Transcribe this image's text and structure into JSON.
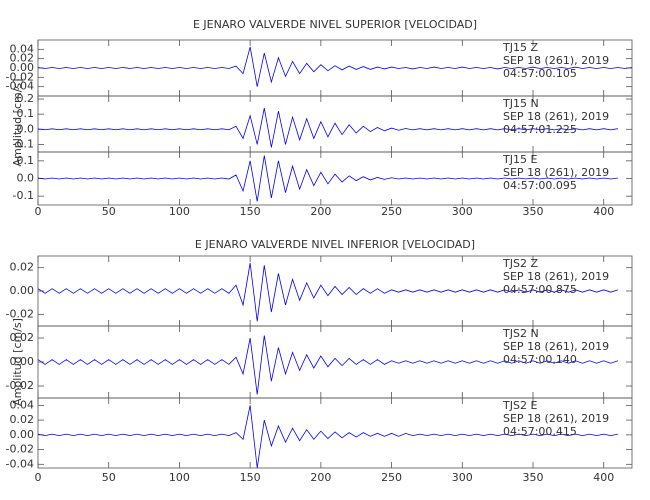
{
  "chart_data": [
    {
      "type": "line",
      "title": "E JENARO VALVERDE NIVEL SUPERIOR [VELOCIDAD]",
      "y_label": "Amplitud [cm/s]",
      "color": "#0000ff",
      "xlim": [
        0,
        420
      ],
      "xticks": [
        0,
        50,
        100,
        150,
        200,
        250,
        300,
        350,
        400
      ],
      "x": [
        0,
        5,
        10,
        15,
        20,
        25,
        30,
        35,
        40,
        45,
        50,
        55,
        60,
        65,
        70,
        75,
        80,
        85,
        90,
        95,
        100,
        105,
        110,
        115,
        120,
        125,
        130,
        135,
        140,
        145,
        150,
        155,
        160,
        165,
        170,
        175,
        180,
        185,
        190,
        195,
        200,
        205,
        210,
        215,
        220,
        225,
        230,
        235,
        240,
        245,
        250,
        255,
        260,
        265,
        270,
        275,
        280,
        285,
        290,
        295,
        300,
        305,
        310,
        315,
        320,
        325,
        330,
        335,
        340,
        345,
        350,
        355,
        360,
        365,
        370,
        375,
        380,
        385,
        390,
        395,
        400,
        405,
        410,
        415,
        420
      ],
      "panels": [
        {
          "station": "TJ15   Z",
          "date": "SEP 18 (261), 2019",
          "time": "04:57:00.105",
          "ylim": [
            -0.06,
            0.06
          ],
          "yticks": [
            -0.04,
            -0.02,
            {
              "value": 0,
              "label": "0.00"
            },
            0.02,
            0.04
          ],
          "values": [
            0.001,
            -0.001,
            0.001,
            -0.001,
            0.001,
            -0.001,
            0.001,
            -0.001,
            0.001,
            -0.001,
            0.001,
            -0.001,
            0.001,
            -0.001,
            0.001,
            -0.001,
            0.001,
            -0.001,
            0.001,
            -0.001,
            0.001,
            -0.001,
            0.001,
            -0.001,
            0.001,
            -0.001,
            0.001,
            -0.001,
            0.004,
            -0.012,
            0.045,
            -0.04,
            0.032,
            -0.03,
            0.022,
            -0.018,
            0.014,
            -0.012,
            0.01,
            -0.008,
            0.007,
            -0.006,
            0.005,
            -0.004,
            0.004,
            -0.003,
            0.003,
            -0.003,
            0.002,
            -0.002,
            0.002,
            -0.001,
            0.001,
            -0.002,
            0.001,
            -0.001,
            0.002,
            -0.001,
            0.001,
            -0.001,
            0.002,
            -0.001,
            0.001,
            -0.001,
            0.001,
            -0.002,
            0.001,
            -0.001,
            0.001,
            -0.001,
            0.002,
            -0.001,
            0.001,
            -0.001,
            0.001,
            -0.001,
            0.002,
            -0.001,
            0.001,
            -0.001,
            0.001,
            -0.001,
            0.001,
            -0.001,
            0.001
          ]
        },
        {
          "station": "TJ15   N",
          "date": "SEP 18 (261), 2019",
          "time": "04:57:01.225",
          "ylim": [
            -0.15,
            0.22
          ],
          "yticks": [
            -0.1,
            {
              "value": 0,
              "label": "0.0"
            },
            0.1,
            0.2
          ],
          "values": [
            0.003,
            -0.003,
            0.003,
            -0.003,
            0.003,
            -0.003,
            0.003,
            -0.003,
            0.003,
            -0.003,
            0.003,
            -0.003,
            0.003,
            -0.003,
            0.003,
            -0.003,
            0.003,
            -0.003,
            0.003,
            -0.003,
            0.003,
            -0.003,
            0.003,
            -0.003,
            0.003,
            -0.003,
            0.003,
            -0.003,
            0.02,
            -0.06,
            0.09,
            -0.1,
            0.14,
            -0.12,
            0.12,
            -0.1,
            0.08,
            -0.07,
            0.07,
            -0.06,
            0.05,
            -0.05,
            0.04,
            -0.035,
            0.03,
            -0.025,
            0.02,
            -0.015,
            0.012,
            -0.01,
            0.008,
            -0.006,
            0.005,
            -0.004,
            0.004,
            -0.004,
            0.004,
            -0.004,
            0.004,
            -0.004,
            0.004,
            -0.004,
            0.004,
            -0.004,
            0.004,
            -0.004,
            0.004,
            -0.004,
            0.004,
            -0.004,
            0.004,
            -0.004,
            0.004,
            -0.004,
            0.004,
            -0.004,
            0.004,
            -0.004,
            0.004,
            -0.004,
            0.004,
            -0.004,
            0.004
          ]
        },
        {
          "station": "TJ15   E",
          "date": "SEP 18 (261), 2019",
          "time": "04:57:00.095",
          "ylim": [
            -0.15,
            0.15
          ],
          "yticks": [
            -0.1,
            {
              "value": 0,
              "label": "0.0"
            },
            0.1
          ],
          "values": [
            0.003,
            -0.003,
            0.003,
            -0.003,
            0.003,
            -0.003,
            0.003,
            -0.003,
            0.003,
            -0.003,
            0.003,
            -0.003,
            0.003,
            -0.003,
            0.003,
            -0.003,
            0.003,
            -0.003,
            0.003,
            -0.003,
            0.003,
            -0.003,
            0.003,
            -0.003,
            0.003,
            -0.003,
            0.003,
            -0.003,
            0.02,
            -0.07,
            0.1,
            -0.13,
            0.13,
            -0.11,
            0.1,
            -0.08,
            0.07,
            -0.06,
            0.05,
            -0.04,
            0.035,
            -0.03,
            0.025,
            -0.02,
            0.015,
            -0.012,
            0.01,
            -0.008,
            0.006,
            -0.005,
            0.004,
            -0.003,
            0.003,
            -0.003,
            0.003,
            -0.003,
            0.003,
            -0.003,
            0.003,
            -0.003,
            0.003,
            -0.003,
            0.003,
            -0.003,
            0.003,
            -0.003,
            0.003,
            -0.003,
            0.003,
            -0.003,
            0.003,
            -0.003,
            0.003,
            -0.003,
            0.003,
            -0.003,
            0.003,
            -0.003,
            0.003,
            -0.003,
            0.003,
            -0.003,
            0.003
          ]
        }
      ]
    },
    {
      "type": "line",
      "title": "E JENARO VALVERDE NIVEL INFERIOR [VELOCIDAD]",
      "y_label": "Amplitud [cm/s]",
      "color": "#0000ff",
      "xlim": [
        0,
        420
      ],
      "xticks": [
        0,
        50,
        100,
        150,
        200,
        250,
        300,
        350,
        400
      ],
      "x": [
        0,
        5,
        10,
        15,
        20,
        25,
        30,
        35,
        40,
        45,
        50,
        55,
        60,
        65,
        70,
        75,
        80,
        85,
        90,
        95,
        100,
        105,
        110,
        115,
        120,
        125,
        130,
        135,
        140,
        145,
        150,
        155,
        160,
        165,
        170,
        175,
        180,
        185,
        190,
        195,
        200,
        205,
        210,
        215,
        220,
        225,
        230,
        235,
        240,
        245,
        250,
        255,
        260,
        265,
        270,
        275,
        280,
        285,
        290,
        295,
        300,
        305,
        310,
        315,
        320,
        325,
        330,
        335,
        340,
        345,
        350,
        355,
        360,
        365,
        370,
        375,
        380,
        385,
        390,
        395,
        400,
        405,
        410,
        415,
        420
      ],
      "panels": [
        {
          "station": "TJS2   Z",
          "date": "SEP 18 (261), 2019",
          "time": "04:57:00.875",
          "ylim": [
            -0.03,
            0.03
          ],
          "yticks": [
            -0.02,
            {
              "value": 0,
              "label": "0.00"
            },
            0.02
          ],
          "values": [
            0.002,
            -0.002,
            0.002,
            -0.002,
            0.002,
            -0.002,
            0.002,
            -0.002,
            0.002,
            -0.002,
            0.002,
            -0.002,
            0.002,
            -0.002,
            0.002,
            -0.002,
            0.002,
            -0.002,
            0.002,
            -0.002,
            0.002,
            -0.002,
            0.002,
            -0.002,
            0.002,
            -0.002,
            0.002,
            -0.002,
            0.005,
            -0.012,
            0.024,
            -0.026,
            0.022,
            -0.018,
            0.015,
            -0.012,
            0.01,
            -0.008,
            0.007,
            -0.006,
            0.005,
            -0.004,
            0.004,
            -0.003,
            0.003,
            -0.003,
            0.002,
            -0.002,
            0.002,
            -0.002,
            0.001,
            -0.001,
            0.001,
            -0.001,
            0.001,
            -0.001,
            0.001,
            -0.001,
            0.001,
            -0.001,
            0.001,
            -0.001,
            0.001,
            -0.001,
            0.001,
            -0.001,
            0.001,
            -0.001,
            0.001,
            -0.001,
            0.001,
            -0.001,
            0.001,
            -0.001,
            0.001,
            -0.001,
            0.001,
            -0.001,
            0.001,
            -0.001,
            0.001,
            -0.001,
            0.001
          ]
        },
        {
          "station": "TJS2   N",
          "date": "SEP 18 (261), 2019",
          "time": "04:57:00.140",
          "ylim": [
            -0.03,
            0.03
          ],
          "yticks": [
            -0.02,
            {
              "value": 0,
              "label": "0.00"
            },
            0.02
          ],
          "values": [
            0.002,
            -0.002,
            0.002,
            -0.002,
            0.002,
            -0.002,
            0.002,
            -0.002,
            0.002,
            -0.002,
            0.002,
            -0.002,
            0.002,
            -0.002,
            0.002,
            -0.002,
            0.002,
            -0.002,
            0.002,
            -0.002,
            0.002,
            -0.002,
            0.002,
            -0.002,
            0.002,
            -0.002,
            0.002,
            -0.002,
            0.004,
            -0.01,
            0.02,
            -0.027,
            0.022,
            -0.016,
            0.012,
            -0.01,
            0.008,
            -0.007,
            0.006,
            -0.005,
            0.005,
            -0.004,
            0.003,
            -0.003,
            0.003,
            -0.002,
            0.002,
            -0.002,
            0.002,
            -0.002,
            0.001,
            -0.001,
            0.001,
            -0.001,
            0.001,
            -0.001,
            0.001,
            -0.001,
            0.001,
            -0.001,
            0.001,
            -0.001,
            0.001,
            -0.001,
            0.001,
            -0.001,
            0.001,
            -0.001,
            0.001,
            -0.001,
            0.001,
            -0.001,
            0.001,
            -0.001,
            0.001,
            -0.001,
            0.001,
            -0.001,
            0.001,
            -0.001,
            0.001,
            -0.001,
            0.001
          ]
        },
        {
          "station": "TJS2   E",
          "date": "SEP 18 (261), 2019",
          "time": "04:57:00.415",
          "ylim": [
            -0.045,
            0.05
          ],
          "yticks": [
            -0.04,
            -0.02,
            {
              "value": 0,
              "label": "0.00"
            },
            0.02,
            0.04
          ],
          "values": [
            0.001,
            -0.001,
            0.001,
            -0.001,
            0.001,
            -0.001,
            0.001,
            -0.001,
            0.001,
            -0.001,
            0.001,
            -0.001,
            0.001,
            -0.001,
            0.001,
            -0.001,
            0.001,
            -0.001,
            0.001,
            -0.001,
            0.001,
            -0.001,
            0.001,
            -0.001,
            0.001,
            -0.001,
            0.001,
            -0.001,
            0.003,
            -0.006,
            0.04,
            -0.045,
            0.02,
            -0.015,
            0.012,
            -0.01,
            0.009,
            -0.008,
            0.007,
            -0.006,
            0.005,
            -0.005,
            0.004,
            -0.004,
            0.003,
            -0.003,
            0.003,
            -0.002,
            0.002,
            -0.002,
            0.002,
            -0.002,
            0.002,
            -0.001,
            0.001,
            -0.001,
            0.001,
            -0.001,
            0.001,
            -0.001,
            0.001,
            -0.001,
            0.001,
            -0.001,
            0.001,
            -0.001,
            0.001,
            -0.001,
            0.001,
            -0.001,
            0.001,
            -0.001,
            0.001,
            -0.001,
            0.001,
            -0.001,
            0.001,
            -0.001,
            0.001,
            -0.001,
            0.001,
            -0.001,
            0.001
          ]
        }
      ]
    }
  ]
}
